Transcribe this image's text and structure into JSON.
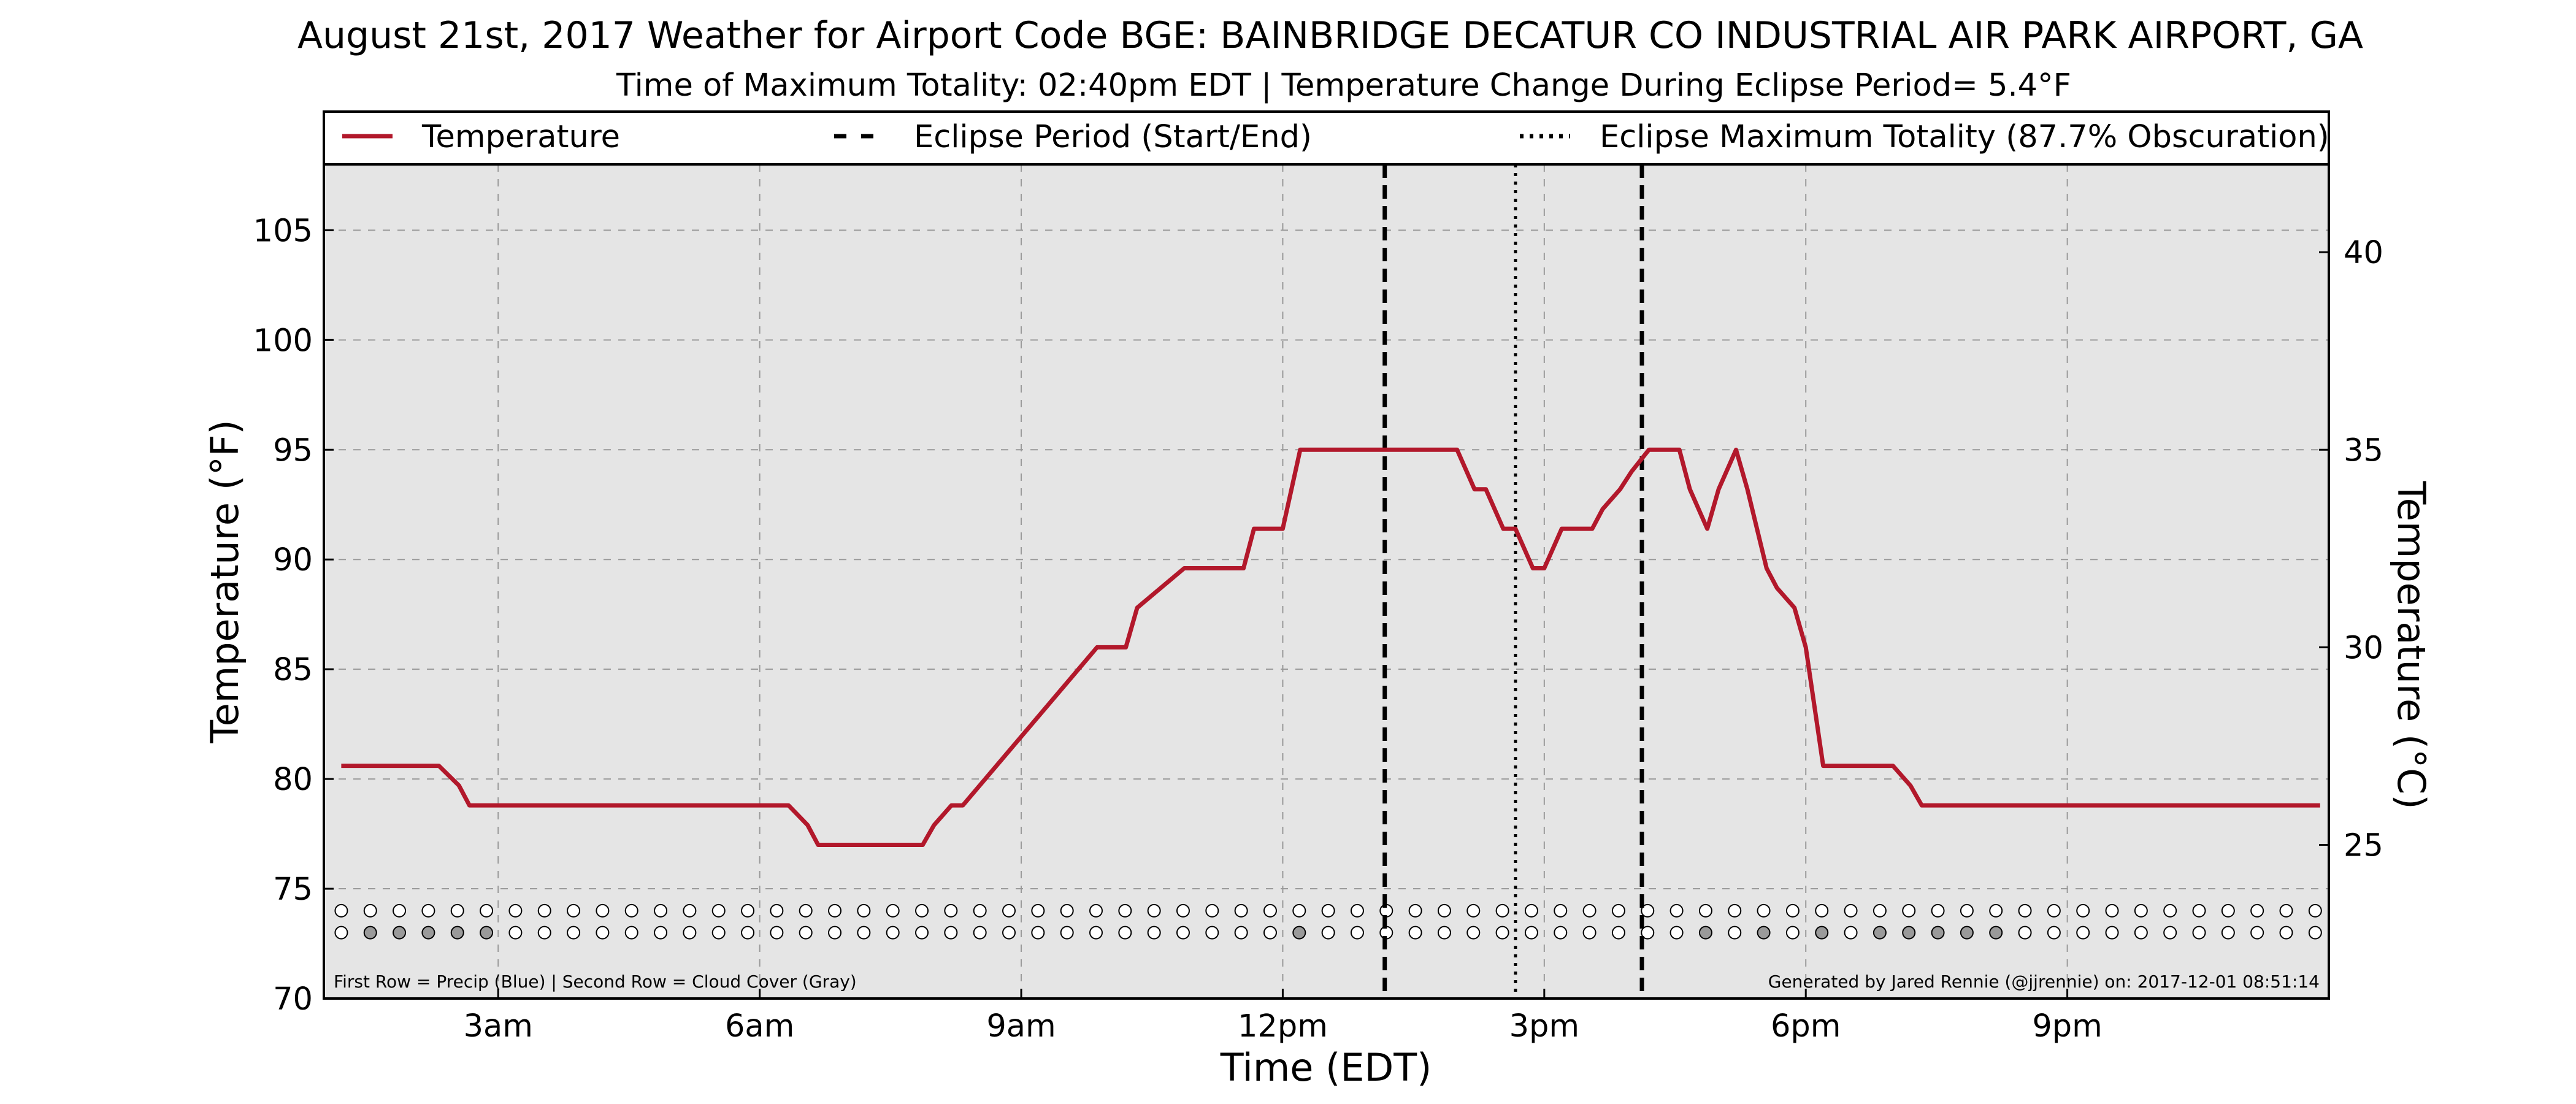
{
  "chart_data": {
    "type": "line",
    "title": "August 21st, 2017 Weather for Airport Code BGE: BAINBRIDGE DECATUR CO INDUSTRIAL AIR PARK AIRPORT, GA",
    "subtitle": "Time of Maximum Totality: 02:40pm EDT | Temperature Change During Eclipse Period= 5.4°F",
    "xlabel": "Time (EDT)",
    "ylabel": "Temperature (°F)",
    "y2label": "Temperature (°C)",
    "xlim": [
      1.0,
      24.0
    ],
    "ylim": [
      70,
      108
    ],
    "x_ticks": [
      3,
      6,
      9,
      12,
      15,
      18,
      21
    ],
    "x_tick_labels": [
      "3am",
      "6am",
      "9am",
      "12pm",
      "3pm",
      "6pm",
      "9pm"
    ],
    "y_ticks": [
      70,
      75,
      80,
      85,
      90,
      95,
      100,
      105
    ],
    "y2_ticks": [
      25,
      30,
      35,
      40
    ],
    "grid": true,
    "legend_position": "top",
    "legend": [
      {
        "label": "Temperature",
        "style": "solid",
        "color": "#b2182b"
      },
      {
        "label": "Eclipse Period (Start/End)",
        "style": "dashed",
        "color": "#000000"
      },
      {
        "label": "Eclipse Maximum Totality (87.7% Obscuration)",
        "style": "dotted",
        "color": "#000000"
      }
    ],
    "series": [
      {
        "name": "Temperature",
        "color": "#b2182b",
        "x": [
          1.2,
          2.2,
          2.32,
          2.55,
          2.67,
          6.2,
          6.33,
          6.55,
          6.67,
          7.87,
          8.0,
          8.2,
          8.33,
          9.87,
          10.0,
          10.2,
          10.33,
          10.87,
          11.0,
          11.55,
          11.67,
          11.87,
          12.0,
          12.2,
          12.33,
          12.67,
          13.2,
          13.33,
          13.5,
          13.67,
          13.87,
          14.0,
          14.2,
          14.33,
          14.53,
          14.67,
          14.87,
          15.0,
          15.2,
          15.33,
          15.55,
          15.67,
          15.87,
          16.0,
          16.2,
          16.33,
          16.55,
          16.67,
          16.87,
          17.0,
          17.2,
          17.33,
          17.55,
          17.67,
          17.87,
          18.0,
          18.2,
          18.33,
          18.53,
          18.67,
          18.87,
          19.0,
          19.2,
          19.33,
          19.55,
          19.67,
          19.87,
          20.0,
          20.5,
          21.0,
          21.5,
          22.0,
          22.5,
          23.0,
          23.5,
          23.9
        ],
        "values": [
          80.6,
          80.6,
          80.6,
          79.7,
          78.8,
          78.8,
          78.8,
          77.9,
          77.0,
          77.0,
          77.9,
          78.8,
          78.8,
          86.0,
          86.0,
          86.0,
          87.8,
          89.6,
          89.6,
          89.6,
          91.4,
          91.4,
          91.4,
          95.0,
          95.0,
          95.0,
          95.0,
          95.0,
          95.0,
          95.0,
          95.0,
          95.0,
          93.2,
          93.2,
          91.4,
          91.4,
          89.6,
          89.6,
          91.4,
          91.4,
          91.4,
          92.3,
          93.2,
          94.0,
          95.0,
          95.0,
          95.0,
          93.2,
          91.4,
          93.2,
          95.0,
          93.2,
          89.6,
          88.7,
          87.8,
          86.0,
          80.6,
          80.6,
          80.6,
          80.6,
          80.6,
          80.6,
          79.7,
          78.8,
          78.8,
          78.8,
          78.8,
          78.8,
          78.8,
          78.8,
          78.8,
          78.8,
          78.8,
          78.8,
          78.8,
          78.8
        ]
      }
    ],
    "eclipse_start_x": 13.17,
    "eclipse_end_x": 16.12,
    "max_totality_x": 14.67,
    "obs_rows": {
      "x_start": 1.2,
      "x_step": 0.333,
      "count": 69,
      "row1_value": 74.0,
      "row2_value": 73.0,
      "row1_fill": "#ffffff",
      "row2_gray_indices": [
        1,
        2,
        3,
        4,
        5,
        33,
        47,
        49,
        51,
        53,
        54,
        55,
        56,
        57
      ],
      "gray_fill": "#9a9a9a"
    },
    "notes": {
      "left": "First Row = Precip (Blue) | Second Row = Cloud Cover (Gray)",
      "right": "Generated by Jared Rennie (@jjrennie) on: 2017-12-01 08:51:14"
    }
  }
}
